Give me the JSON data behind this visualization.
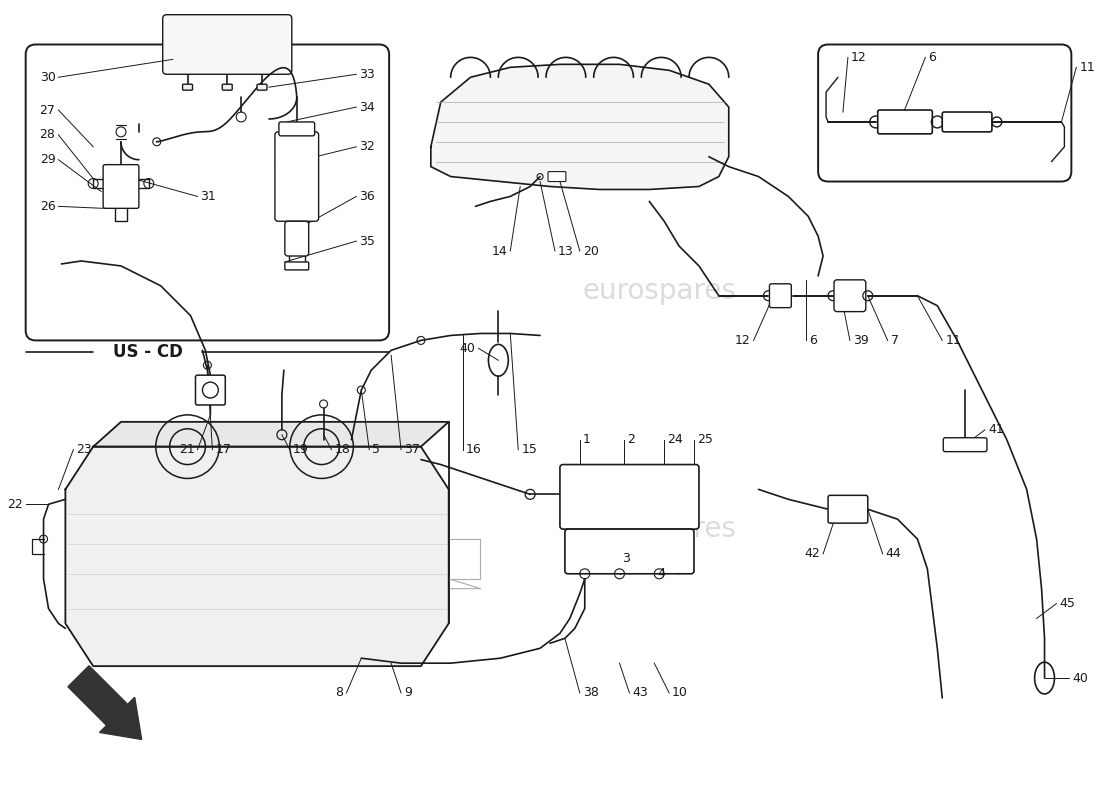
{
  "bg": "#ffffff",
  "lc": "#1a1a1a",
  "lc_light": "#aaaaaa",
  "wm": "eurospares",
  "wm_color": "#cccccc",
  "uscd": "US - CD",
  "fs": 9,
  "fs_uscd": 11,
  "lw": 1.2,
  "lw_thin": 0.7,
  "lw_thick": 1.8
}
